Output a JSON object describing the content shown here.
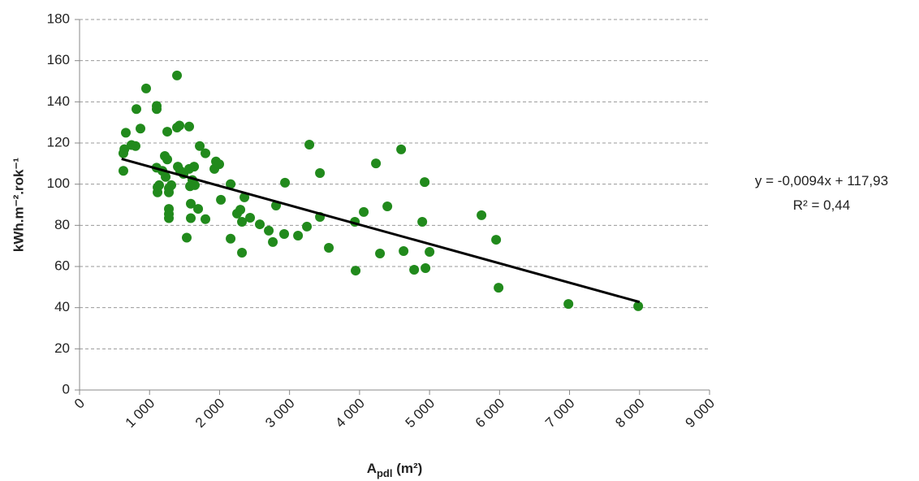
{
  "chart_data": {
    "type": "scatter",
    "ylabel": "kWh.m⁻².rok⁻¹",
    "xlabel": [
      "A",
      "pdl",
      " (m²)"
    ],
    "color": "#218a1c",
    "grid": true,
    "xlim": [
      0,
      9000
    ],
    "ylim": [
      0,
      180
    ],
    "xticks": [
      0,
      {
        "value": 1000,
        "label": "1 000"
      },
      {
        "value": 2000,
        "label": "2 000"
      },
      {
        "value": 3000,
        "label": "3 000"
      },
      {
        "value": 4000,
        "label": "4 000"
      },
      {
        "value": 5000,
        "label": "5 000"
      },
      {
        "value": 6000,
        "label": "6 000"
      },
      {
        "value": 7000,
        "label": "7 000"
      },
      {
        "value": 8000,
        "label": "8 000"
      },
      {
        "value": 9000,
        "label": "9 000"
      }
    ],
    "yticks": [
      0,
      20,
      40,
      60,
      80,
      100,
      120,
      140,
      160,
      180
    ],
    "x": [
      640,
      626,
      626,
      661,
      742,
      800,
      812,
      870,
      951,
      1102,
      1102,
      1100,
      1114,
      1114,
      1137,
      1183,
      1218,
      1230,
      1253,
      1253,
      1276,
      1276,
      1276,
      1276,
      1276,
      1311,
      1392,
      1392,
      1427,
      1404,
      1438,
      1485,
      1531,
      1566,
      1566,
      1578,
      1589,
      1589,
      1612,
      1636,
      1647,
      1694,
      1717,
      1798,
      1798,
      1926,
      1949,
      1995,
      2019,
      2158,
      2158,
      2250,
      2297,
      2320,
      2320,
      2355,
      2436,
      2575,
      2703,
      2761,
      2807,
      2935,
      2923,
      3121,
      3248,
      3283,
      3434,
      3434,
      3561,
      3933,
      3944,
      4060,
      4234,
      4292,
      4397,
      4594,
      4629,
      4780,
      4896,
      4930,
      4942,
      5000,
      5742,
      5951,
      5986,
      6984,
      7981
    ],
    "values": [
      117,
      115,
      106.5,
      125,
      119,
      118.5,
      136.5,
      127,
      146.5,
      138,
      136.5,
      108,
      98.5,
      96,
      99.5,
      106.5,
      113.7,
      103.5,
      125.5,
      112,
      98,
      96,
      88,
      85.5,
      83.5,
      99.5,
      152.8,
      127.5,
      128.5,
      108.5,
      106.5,
      105,
      74,
      128,
      107.4,
      99,
      90.5,
      83.5,
      102,
      108.5,
      99.5,
      88,
      118.5,
      115,
      83,
      107.4,
      111,
      109.7,
      92.4,
      100,
      73.5,
      85.7,
      87.6,
      81.7,
      66.7,
      93.6,
      83.7,
      80.5,
      77.4,
      71.9,
      89.6,
      100.7,
      75.8,
      75,
      79.4,
      119.2,
      105.4,
      84.1,
      69.1,
      81.7,
      58,
      86.5,
      110.1,
      66.3,
      89.2,
      116.9,
      67.5,
      58.4,
      81.7,
      101,
      59.2,
      67.1,
      84.9,
      73,
      49.7,
      41.8,
      40.7
    ],
    "trendline": {
      "x": [
        600,
        8000
      ],
      "slope": -0.0094,
      "intercept": 117.93,
      "color": "#000000",
      "label": "y = -0,0094x + 117,93",
      "r2_label": "R² = 0,44"
    }
  }
}
